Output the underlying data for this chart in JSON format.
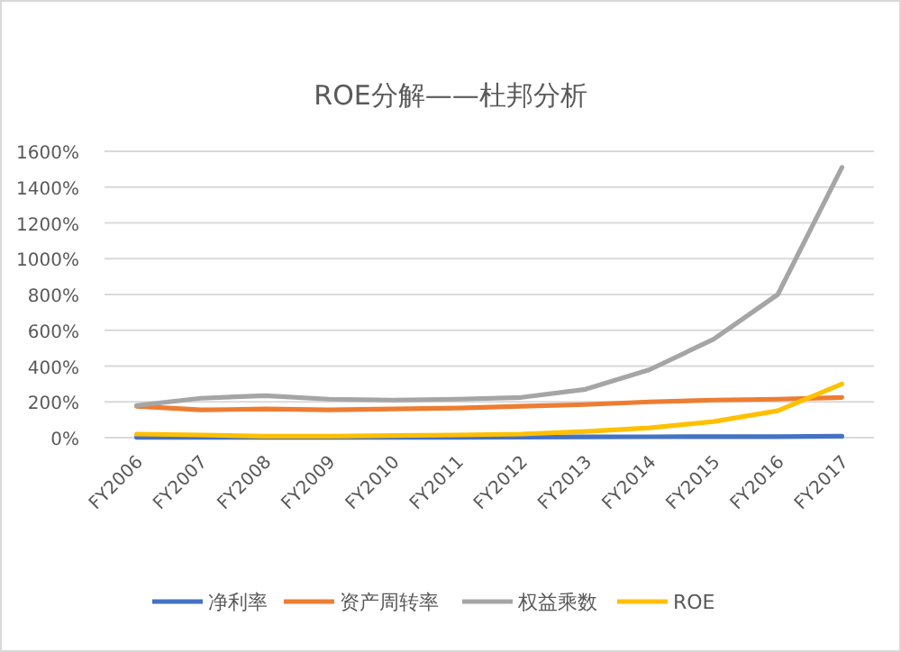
{
  "chart_data": {
    "type": "line",
    "title": "ROE分解——杜邦分析",
    "categories": [
      "FY2006",
      "FY2007",
      "FY2008",
      "FY2009",
      "FY2010",
      "FY2011",
      "FY2012",
      "FY2013",
      "FY2014",
      "FY2015",
      "FY2016",
      "FY2017"
    ],
    "ylim": [
      0,
      1600
    ],
    "yticks": [
      {
        "value": 0,
        "label": "0%"
      },
      {
        "value": 200,
        "label": "200%"
      },
      {
        "value": 400,
        "label": "400%"
      },
      {
        "value": 600,
        "label": "600%"
      },
      {
        "value": 800,
        "label": "800%"
      },
      {
        "value": 1000,
        "label": "1000%"
      },
      {
        "value": 1200,
        "label": "1200%"
      },
      {
        "value": 1400,
        "label": "1400%"
      },
      {
        "value": 1600,
        "label": "1600%"
      }
    ],
    "grid": "y",
    "legend": "bottom",
    "marker": "none",
    "line_style": "solid",
    "series": [
      {
        "name": "净利率",
        "color": "#4472c4",
        "values": [
          2,
          2,
          2,
          2,
          2,
          2,
          3,
          4,
          5,
          6,
          6,
          8
        ]
      },
      {
        "name": "资产周转率",
        "color": "#ed7d31",
        "values": [
          175,
          155,
          160,
          155,
          160,
          165,
          175,
          185,
          200,
          210,
          215,
          225
        ]
      },
      {
        "name": "权益乘数",
        "color": "#a5a5a5",
        "values": [
          180,
          220,
          235,
          215,
          210,
          215,
          225,
          270,
          380,
          550,
          800,
          1510
        ]
      },
      {
        "name": "ROE",
        "color": "#ffc000",
        "values": [
          20,
          15,
          8,
          8,
          12,
          15,
          20,
          35,
          55,
          90,
          150,
          300
        ]
      }
    ]
  }
}
